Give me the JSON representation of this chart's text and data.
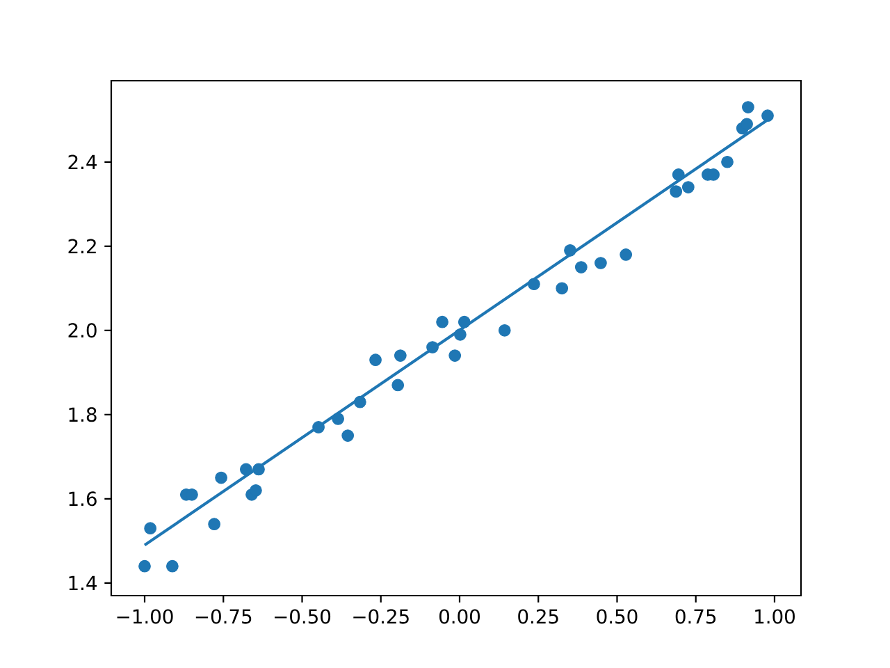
{
  "chart_data": {
    "type": "scatter",
    "xlim": [
      -1.106,
      1.084
    ],
    "ylim": [
      1.37,
      2.593
    ],
    "xticks": [
      {
        "value": -1,
        "label": "−1.00"
      },
      {
        "value": -0.75,
        "label": "−0.75"
      },
      {
        "value": -0.5,
        "label": "−0.50"
      },
      {
        "value": -0.25,
        "label": "−0.25"
      },
      {
        "value": 0,
        "label": "0.00"
      },
      {
        "value": 0.25,
        "label": "0.25"
      },
      {
        "value": 0.5,
        "label": "0.50"
      },
      {
        "value": 0.75,
        "label": "0.75"
      },
      {
        "value": 1,
        "label": "1.00"
      }
    ],
    "yticks": [
      {
        "value": 1.4,
        "label": "1.4"
      },
      {
        "value": 1.6,
        "label": "1.6"
      },
      {
        "value": 1.8,
        "label": "1.8"
      },
      {
        "value": 2.0,
        "label": "2.0"
      },
      {
        "value": 2.2,
        "label": "2.2"
      },
      {
        "value": 2.4,
        "label": "2.4"
      }
    ],
    "series": [
      {
        "color": "#1f77b4",
        "marker": "circle",
        "x": [
          -1.0,
          -0.982,
          -0.912,
          -0.868,
          -0.85,
          -0.779,
          -0.757,
          -0.678,
          -0.66,
          -0.647,
          -0.638,
          -0.448,
          -0.386,
          -0.355,
          -0.316,
          -0.267,
          -0.196,
          -0.188,
          -0.086,
          -0.055,
          -0.015,
          0.002,
          0.015,
          0.143,
          0.236,
          0.325,
          0.351,
          0.386,
          0.448,
          0.528,
          0.687,
          0.695,
          0.726,
          0.788,
          0.806,
          0.85,
          0.898,
          0.912,
          0.916,
          0.978
        ],
        "values": [
          1.44,
          1.53,
          1.44,
          1.61,
          1.61,
          1.54,
          1.65,
          1.67,
          1.61,
          1.62,
          1.67,
          1.77,
          1.79,
          1.75,
          1.83,
          1.93,
          1.87,
          1.94,
          1.96,
          2.02,
          1.94,
          1.99,
          2.02,
          2.0,
          2.11,
          2.1,
          2.19,
          2.15,
          2.16,
          2.18,
          2.33,
          2.37,
          2.34,
          2.37,
          2.37,
          2.4,
          2.48,
          2.49,
          2.53,
          2.51
        ]
      },
      {
        "type": "line",
        "color": "#1f77b4",
        "marker": "none",
        "line_style": "solid",
        "x": [
          -1.0,
          0.978
        ],
        "values": [
          1.49,
          2.5
        ]
      }
    ]
  }
}
